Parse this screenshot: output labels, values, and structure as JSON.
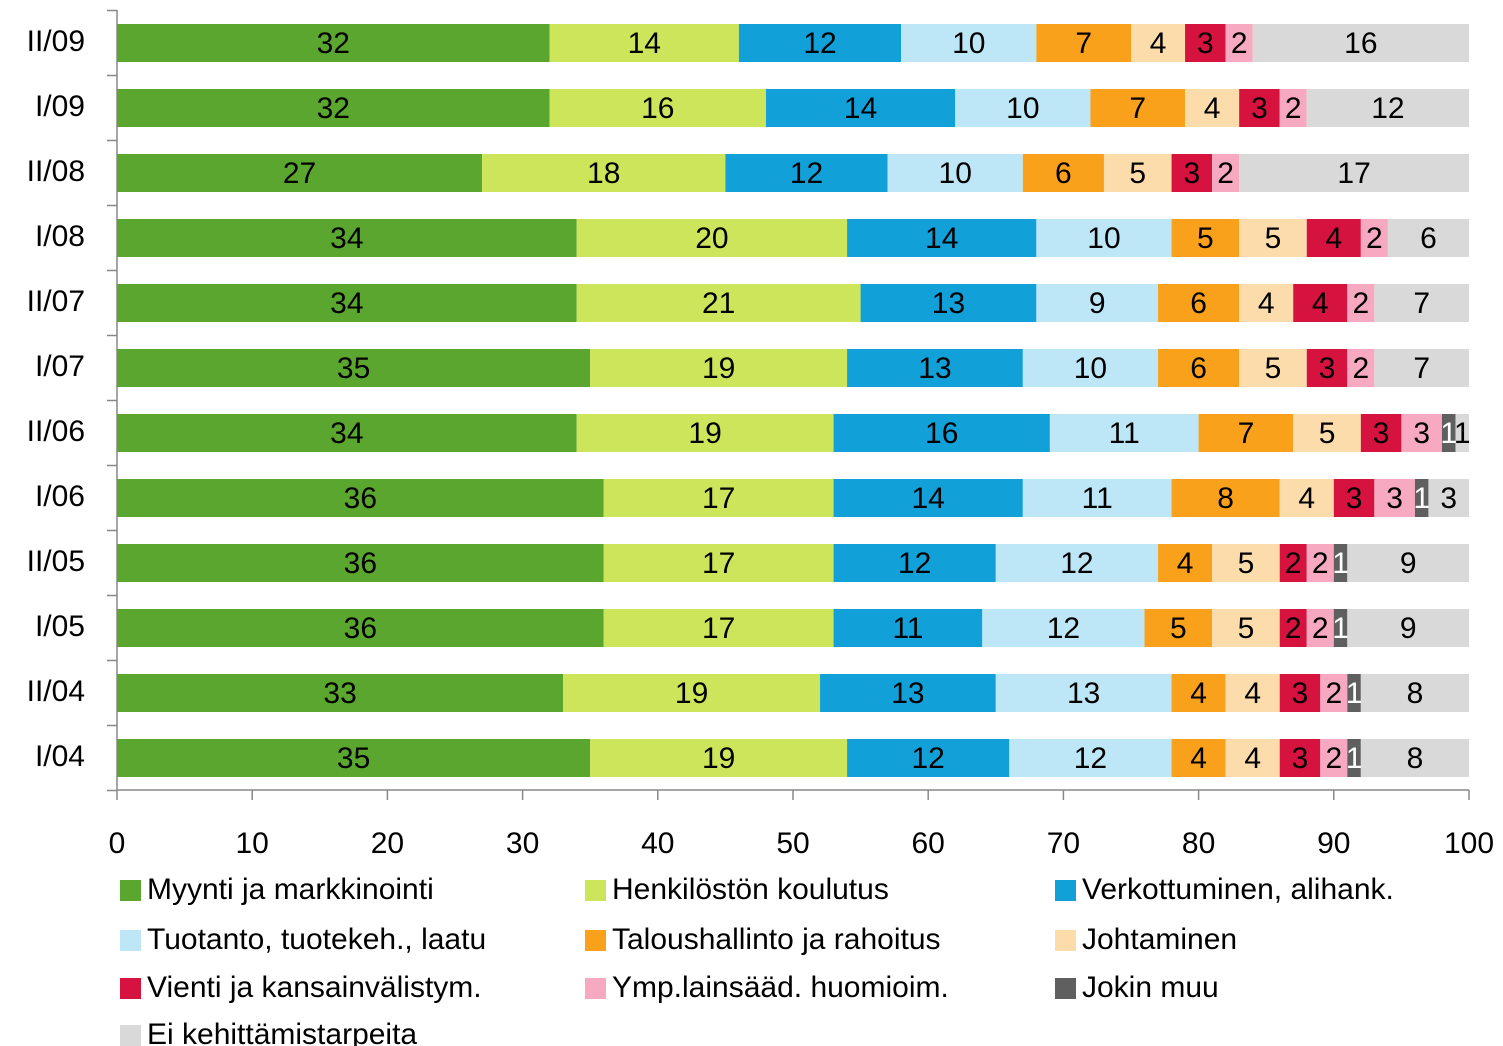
{
  "chart_data": {
    "type": "stacked-barh",
    "categories": [
      "II/09",
      "I/09",
      "II/08",
      "I/08",
      "II/07",
      "I/07",
      "II/06",
      "I/06",
      "II/05",
      "I/05",
      "II/04",
      "I/04"
    ],
    "series": [
      {
        "name": "Myynti ja markkinointi",
        "color": "#5aa62e",
        "values": [
          32,
          32,
          27,
          34,
          34,
          35,
          34,
          36,
          36,
          36,
          33,
          35
        ]
      },
      {
        "name": "Henkilöstön koulutus",
        "color": "#cde55a",
        "values": [
          14,
          16,
          18,
          20,
          21,
          19,
          19,
          17,
          17,
          17,
          19,
          19
        ]
      },
      {
        "name": "Verkottuminen, alihank.",
        "color": "#12a0d8",
        "values": [
          12,
          14,
          12,
          14,
          13,
          13,
          16,
          14,
          12,
          11,
          13,
          12
        ]
      },
      {
        "name": "Tuotanto, tuotekeh., laatu",
        "color": "#bde6f7",
        "values": [
          10,
          10,
          10,
          10,
          9,
          10,
          11,
          11,
          12,
          12,
          13,
          12
        ]
      },
      {
        "name": "Taloushallinto ja rahoitus",
        "color": "#f9a11b",
        "values": [
          7,
          7,
          6,
          5,
          6,
          6,
          7,
          8,
          4,
          5,
          4,
          4
        ]
      },
      {
        "name": "Johtaminen",
        "color": "#fddcab",
        "values": [
          4,
          4,
          5,
          5,
          4,
          5,
          5,
          4,
          5,
          5,
          4,
          4
        ]
      },
      {
        "name": "Vienti ja kansainvälistym.",
        "color": "#d6123f",
        "values": [
          3,
          3,
          3,
          4,
          4,
          3,
          3,
          3,
          2,
          2,
          3,
          3
        ]
      },
      {
        "name": "Ymp.lainsääd. huomioim.",
        "color": "#f6a9c0",
        "values": [
          2,
          2,
          2,
          2,
          2,
          2,
          3,
          3,
          2,
          2,
          2,
          2
        ]
      },
      {
        "name": "Jokin muu",
        "color": "#5f5f5f",
        "values": [
          null,
          null,
          null,
          null,
          null,
          null,
          1,
          1,
          1,
          1,
          1,
          1
        ]
      },
      {
        "name": "Ei kehittämistarpeita",
        "color": "#d9d9d9",
        "values": [
          16,
          12,
          17,
          6,
          7,
          7,
          1,
          3,
          9,
          9,
          8,
          8
        ]
      }
    ],
    "xlim": [
      0,
      100
    ],
    "xticks": [
      0,
      10,
      20,
      30,
      40,
      50,
      60,
      70,
      80,
      90,
      100
    ],
    "legend": "bottom"
  }
}
